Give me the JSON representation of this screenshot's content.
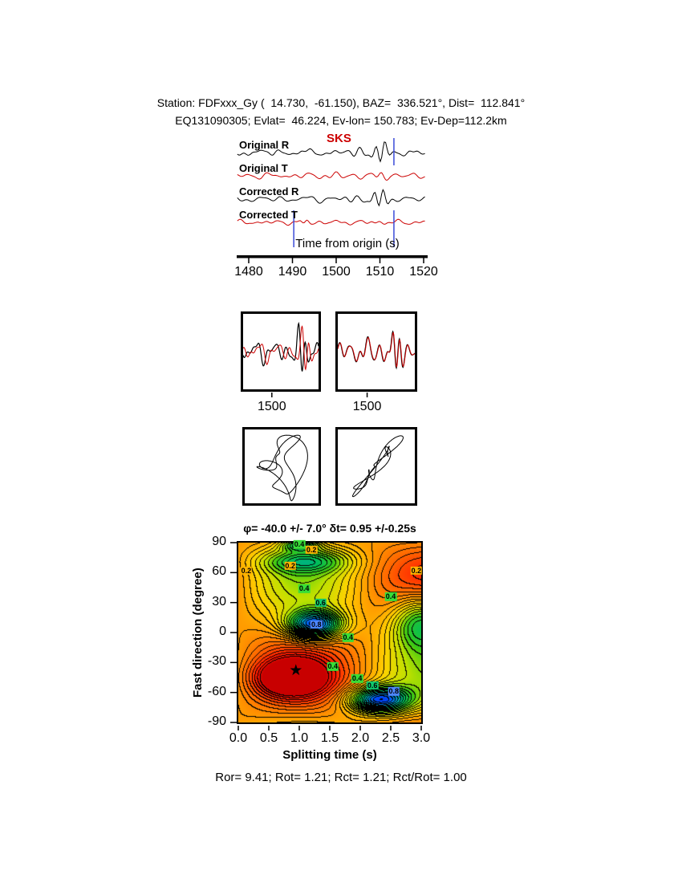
{
  "page": {
    "background": "#ffffff"
  },
  "header": {
    "line1": "Station: FDFxxx_Gy (  14.730,  -61.150), BAZ=  336.521°, Dist=  112.841°",
    "line2": "EQ131090305; Evlat=  46.224, Ev-lon= 150.783; Ev-Dep=112.2km"
  },
  "footer": {
    "stats": "Ror= 9.41; Rot= 1.21; Rct= 1.21; Rct/Rot= 1.00",
    "values": {
      "Ror": 9.41,
      "Rot": 1.21,
      "Rct": 1.21,
      "Rct_over_Rot": 1.0
    }
  },
  "chart_data": [
    {
      "id": "seismogram-traces",
      "type": "line",
      "xlabel": "Time from origin (s)",
      "x_ticks": [
        "1480",
        "1490",
        "1500",
        "1510",
        "1520"
      ],
      "x_range": [
        1477.4,
        1520.4
      ],
      "phase_pick": {
        "label": "SKS",
        "time": 1513.2,
        "color": "#cc0000"
      },
      "selection_window": [
        1490.3,
        1513.2
      ],
      "window_color": "#3b4bd8",
      "series": [
        {
          "name": "Original R",
          "color": "#000000",
          "synth": {
            "harm": [
              [
                0.11,
                1.6,
                0
              ],
              [
                0.17,
                1.9,
                2.1
              ],
              [
                0.26,
                1.4,
                4.0
              ],
              [
                0.37,
                1.0,
                1.0
              ],
              [
                0.53,
                0.7,
                2.6
              ]
            ],
            "pulses": [
              [
                1510.2,
                1.7,
                0.45,
                13,
                4.9
              ],
              [
                1505,
                2.5,
                0.35,
                4,
                1.0
              ],
              [
                1496,
                3,
                0.3,
                2.5,
                0.2
              ]
            ]
          }
        },
        {
          "name": "Original T",
          "color": "#cc0000",
          "synth": {
            "harm": [
              [
                0.13,
                1.4,
                1.0
              ],
              [
                0.21,
                1.6,
                3.0
              ],
              [
                0.3,
                1.2,
                0.4
              ],
              [
                0.44,
                0.8,
                2.0
              ]
            ],
            "pulses": [
              [
                1510.5,
                2.0,
                0.4,
                5,
                2.2
              ],
              [
                1500,
                3,
                0.3,
                2.5,
                1.5
              ]
            ]
          }
        },
        {
          "name": "Corrected R",
          "color": "#000000",
          "synth": {
            "harm": [
              [
                0.12,
                1.5,
                0.6
              ],
              [
                0.18,
                1.8,
                2.8
              ],
              [
                0.27,
                1.3,
                4.6
              ],
              [
                0.39,
                1.0,
                1.6
              ]
            ],
            "pulses": [
              [
                1510.0,
                1.7,
                0.45,
                13,
                5.4
              ],
              [
                1504,
                2.5,
                0.34,
                3.5,
                0.3
              ]
            ]
          }
        },
        {
          "name": "Corrected T",
          "color": "#cc0000",
          "synth": {
            "harm": [
              [
                0.14,
                1.2,
                2.0
              ],
              [
                0.22,
                1.3,
                0.8
              ],
              [
                0.33,
                0.9,
                3.1
              ],
              [
                0.5,
                0.6,
                1.2
              ]
            ],
            "pulses": [
              [
                1493,
                1.3,
                0.5,
                3,
                0.3
              ],
              [
                1510,
                2,
                0.4,
                1.5,
                2.0
              ]
            ]
          }
        }
      ]
    },
    {
      "id": "fast-slow-original",
      "type": "line",
      "x_ticks": [
        "1500"
      ],
      "x_range": [
        1492,
        1513
      ],
      "series": [
        {
          "name": "component-1",
          "color": "#000000",
          "synth": {
            "harm": [
              [
                0.16,
                1.8,
                0.4
              ],
              [
                0.25,
                2.0,
                1.9
              ],
              [
                0.37,
                1.4,
                3.6
              ],
              [
                0.56,
                0.9,
                0.8
              ]
            ],
            "pulses": [
              [
                1508.3,
                1.5,
                0.5,
                8,
                4.4
              ],
              [
                1501,
                2.2,
                0.35,
                3,
                1.2
              ]
            ]
          }
        },
        {
          "name": "component-2",
          "color": "#cc0000",
          "lag": 0.95,
          "scale": 0.9
        }
      ]
    },
    {
      "id": "fast-slow-corrected",
      "type": "line",
      "x_ticks": [
        "1500"
      ],
      "x_range": [
        1492,
        1513
      ],
      "series": [
        {
          "name": "component-1",
          "color": "#000000",
          "synth": {
            "harm": [
              [
                0.15,
                1.7,
                1.3
              ],
              [
                0.26,
                2.1,
                2.4
              ],
              [
                0.38,
                1.3,
                0.2
              ],
              [
                0.55,
                0.8,
                1.9
              ]
            ],
            "pulses": [
              [
                1508.0,
                1.5,
                0.5,
                8,
                5.0
              ],
              [
                1500,
                2.4,
                0.33,
                2.6,
                0.6
              ]
            ]
          }
        },
        {
          "name": "component-2",
          "color": "#cc0000",
          "lag": 0.08,
          "scale": 0.95
        }
      ]
    },
    {
      "id": "particle-motion-original",
      "type": "scatter",
      "description": "elliptical particle motion before correction",
      "harmonics": {
        "x": [
          [
            2,
            0.3,
            0.3
          ],
          [
            5,
            0.18,
            1.5
          ],
          [
            9,
            0.08,
            0.0
          ]
        ],
        "y": [
          [
            2,
            0.46,
            1.8
          ],
          [
            4,
            0.25,
            0.4
          ],
          [
            7,
            0.1,
            2.0
          ]
        ]
      }
    },
    {
      "id": "particle-motion-corrected",
      "type": "scatter",
      "description": "linearized particle motion after correction",
      "harmonics": {
        "x": [
          [
            2,
            0.33,
            0.2
          ],
          [
            5,
            0.16,
            1.2
          ],
          [
            8,
            0.07,
            2.6
          ]
        ],
        "y": [
          [
            2,
            0.42,
            0.25
          ],
          [
            5,
            0.19,
            1.15
          ],
          [
            6,
            0.1,
            2.1
          ]
        ]
      }
    },
    {
      "id": "splitting-misfit-surface",
      "type": "heatmap",
      "title": "φ= -40.0 +/- 7.0° δt= 0.95 +/-0.25s",
      "xlabel": "Splitting time (s)",
      "ylabel": "Fast direction (degree)",
      "x_range": [
        0,
        3
      ],
      "y_range": [
        -90,
        90
      ],
      "x_ticks": [
        "0.0",
        "0.5",
        "1.0",
        "1.5",
        "2.0",
        "2.5",
        "3.0"
      ],
      "y_ticks": [
        "90",
        "60",
        "30",
        "0",
        "-30",
        "-60",
        "-90"
      ],
      "best_fit": {
        "fast_direction_deg": -40.0,
        "fast_direction_err_deg": 7.0,
        "delay_time_s": 0.95,
        "delay_time_err_s": 0.25
      },
      "star": {
        "dt": 0.95,
        "phi": -40,
        "glyph": "★"
      },
      "contour_levels": [
        0.2,
        0.4,
        0.6,
        0.8
      ],
      "contour_labels": [
        {
          "value": "0.2",
          "dt": 0.13,
          "phi": 62
        },
        {
          "value": "0.2",
          "dt": 0.85,
          "phi": 67
        },
        {
          "value": "0.4",
          "dt": 1.0,
          "phi": 88
        },
        {
          "value": "0.2",
          "dt": 1.2,
          "phi": 83
        },
        {
          "value": "0.4",
          "dt": 1.08,
          "phi": 44
        },
        {
          "value": "0.6",
          "dt": 1.35,
          "phi": 30
        },
        {
          "value": "0.8",
          "dt": 1.28,
          "phi": 8
        },
        {
          "value": "0.4",
          "dt": 1.8,
          "phi": -5
        },
        {
          "value": "0.4",
          "dt": 2.5,
          "phi": 36
        },
        {
          "value": "0.2",
          "dt": 2.92,
          "phi": 62
        },
        {
          "value": "0.4",
          "dt": 1.55,
          "phi": -34
        },
        {
          "value": "0.4",
          "dt": 1.95,
          "phi": -46
        },
        {
          "value": "0.6",
          "dt": 2.2,
          "phi": -53
        },
        {
          "value": "0.8",
          "dt": 2.55,
          "phi": -59
        }
      ],
      "label_colors": {
        "0.2": "#ffb400",
        "0.4": "#37dd37",
        "0.6": "#11c96e",
        "0.8": "#4d86ff"
      },
      "palette_stops": [
        [
          0,
          200,
          0,
          0
        ],
        [
          0.1,
          255,
          30,
          0
        ],
        [
          0.2,
          255,
          100,
          0
        ],
        [
          0.3,
          255,
          155,
          0
        ],
        [
          0.4,
          255,
          210,
          0
        ],
        [
          0.5,
          190,
          225,
          0
        ],
        [
          0.58,
          60,
          200,
          20
        ],
        [
          0.68,
          0,
          190,
          90
        ],
        [
          0.77,
          0,
          160,
          190
        ],
        [
          0.86,
          0,
          80,
          255
        ],
        [
          1.0,
          10,
          10,
          180
        ]
      ],
      "surface_model": {
        "base": 0.3,
        "directional": {
          "phi0": -40,
          "amp": 0.22,
          "dt_period": 2.1
        },
        "blobs": [
          [
            1.25,
            0.45,
            8,
            14,
            0.55
          ],
          [
            2.3,
            0.5,
            -67,
            13,
            0.55
          ],
          [
            3.0,
            0.5,
            12,
            28,
            0.38
          ],
          [
            1.1,
            0.7,
            72,
            12,
            0.25
          ],
          [
            1.0,
            0.3,
            88,
            6,
            0.3
          ],
          [
            0.85,
            0.55,
            -45,
            18,
            -0.35
          ]
        ],
        "contour_interval": 0.033
      }
    }
  ]
}
